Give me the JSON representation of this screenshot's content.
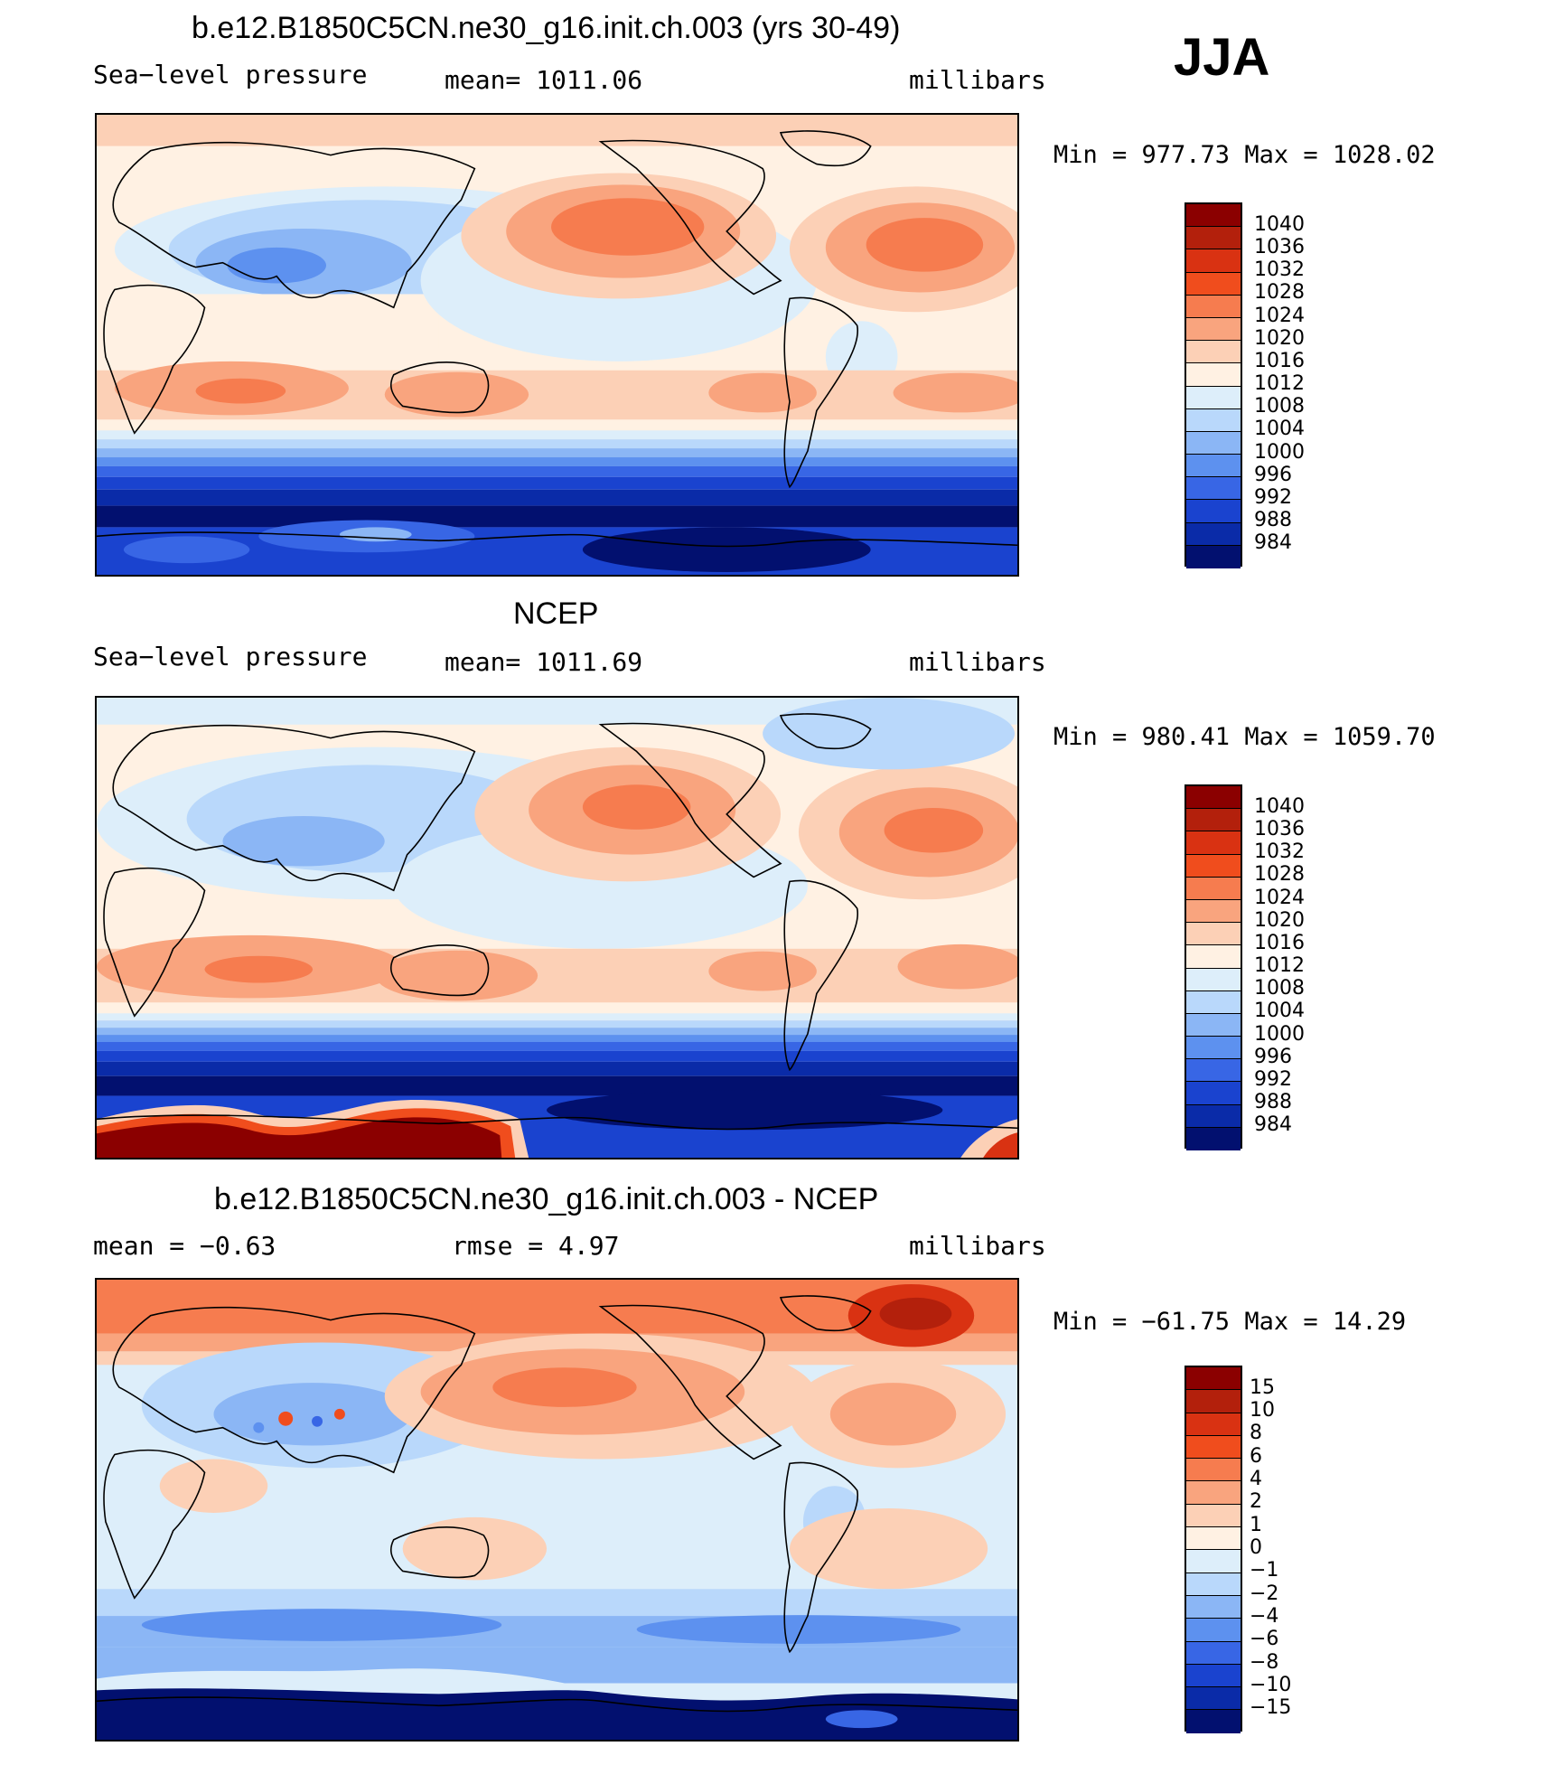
{
  "season": "JJA",
  "panels": [
    {
      "id": "model",
      "title": "b.e12.B1850C5CN.ne30_g16.init.ch.003 (yrs 30-49)",
      "variable": "Sea−level pressure",
      "mean_text": "mean=  1011.06",
      "units": "millibars",
      "minmax": "Min  =  977.73  Max  =  1028.02",
      "levels": [
        "1040",
        "1036",
        "1032",
        "1028",
        "1024",
        "1020",
        "1016",
        "1012",
        "1008",
        "1004",
        "1000",
        "996",
        "992",
        "988",
        "984"
      ],
      "colors": [
        "#8b0000",
        "#b3200c",
        "#d93212",
        "#f04d1d",
        "#f67c4f",
        "#f9a47e",
        "#fcd0b6",
        "#fff1e3",
        "#ddeefa",
        "#b9d8fb",
        "#8bb6f5",
        "#5d91ef",
        "#3866e5",
        "#1a43cf",
        "#0a2ba8",
        "#02106f"
      ]
    },
    {
      "id": "obs",
      "title": "NCEP",
      "variable": "Sea−level pressure",
      "mean_text": "mean=  1011.69",
      "units": "millibars",
      "minmax": "Min  =  980.41  Max  =  1059.70",
      "levels": [
        "1040",
        "1036",
        "1032",
        "1028",
        "1024",
        "1020",
        "1016",
        "1012",
        "1008",
        "1004",
        "1000",
        "996",
        "992",
        "988",
        "984"
      ],
      "colors": [
        "#8b0000",
        "#b3200c",
        "#d93212",
        "#f04d1d",
        "#f67c4f",
        "#f9a47e",
        "#fcd0b6",
        "#fff1e3",
        "#ddeefa",
        "#b9d8fb",
        "#8bb6f5",
        "#5d91ef",
        "#3866e5",
        "#1a43cf",
        "#0a2ba8",
        "#02106f"
      ]
    },
    {
      "id": "diff",
      "title": "b.e12.B1850C5CN.ne30_g16.init.ch.003 - NCEP",
      "variable": "mean  =   −0.63",
      "mean_text": "rmse  =    4.97",
      "units": "millibars",
      "minmax": "Min  =  −61.75  Max  =   14.29",
      "levels": [
        "15",
        "10",
        "8",
        "6",
        "4",
        "2",
        "1",
        "0",
        "−1",
        "−2",
        "−4",
        "−6",
        "−8",
        "−10",
        "−15"
      ],
      "colors": [
        "#8b0000",
        "#b3200c",
        "#d93212",
        "#f04d1d",
        "#f67c4f",
        "#f9a47e",
        "#fcd0b6",
        "#fff1e3",
        "#ddeefa",
        "#b9d8fb",
        "#8bb6f5",
        "#5d91ef",
        "#3866e5",
        "#1a43cf",
        "#0a2ba8",
        "#02106f"
      ]
    }
  ]
}
